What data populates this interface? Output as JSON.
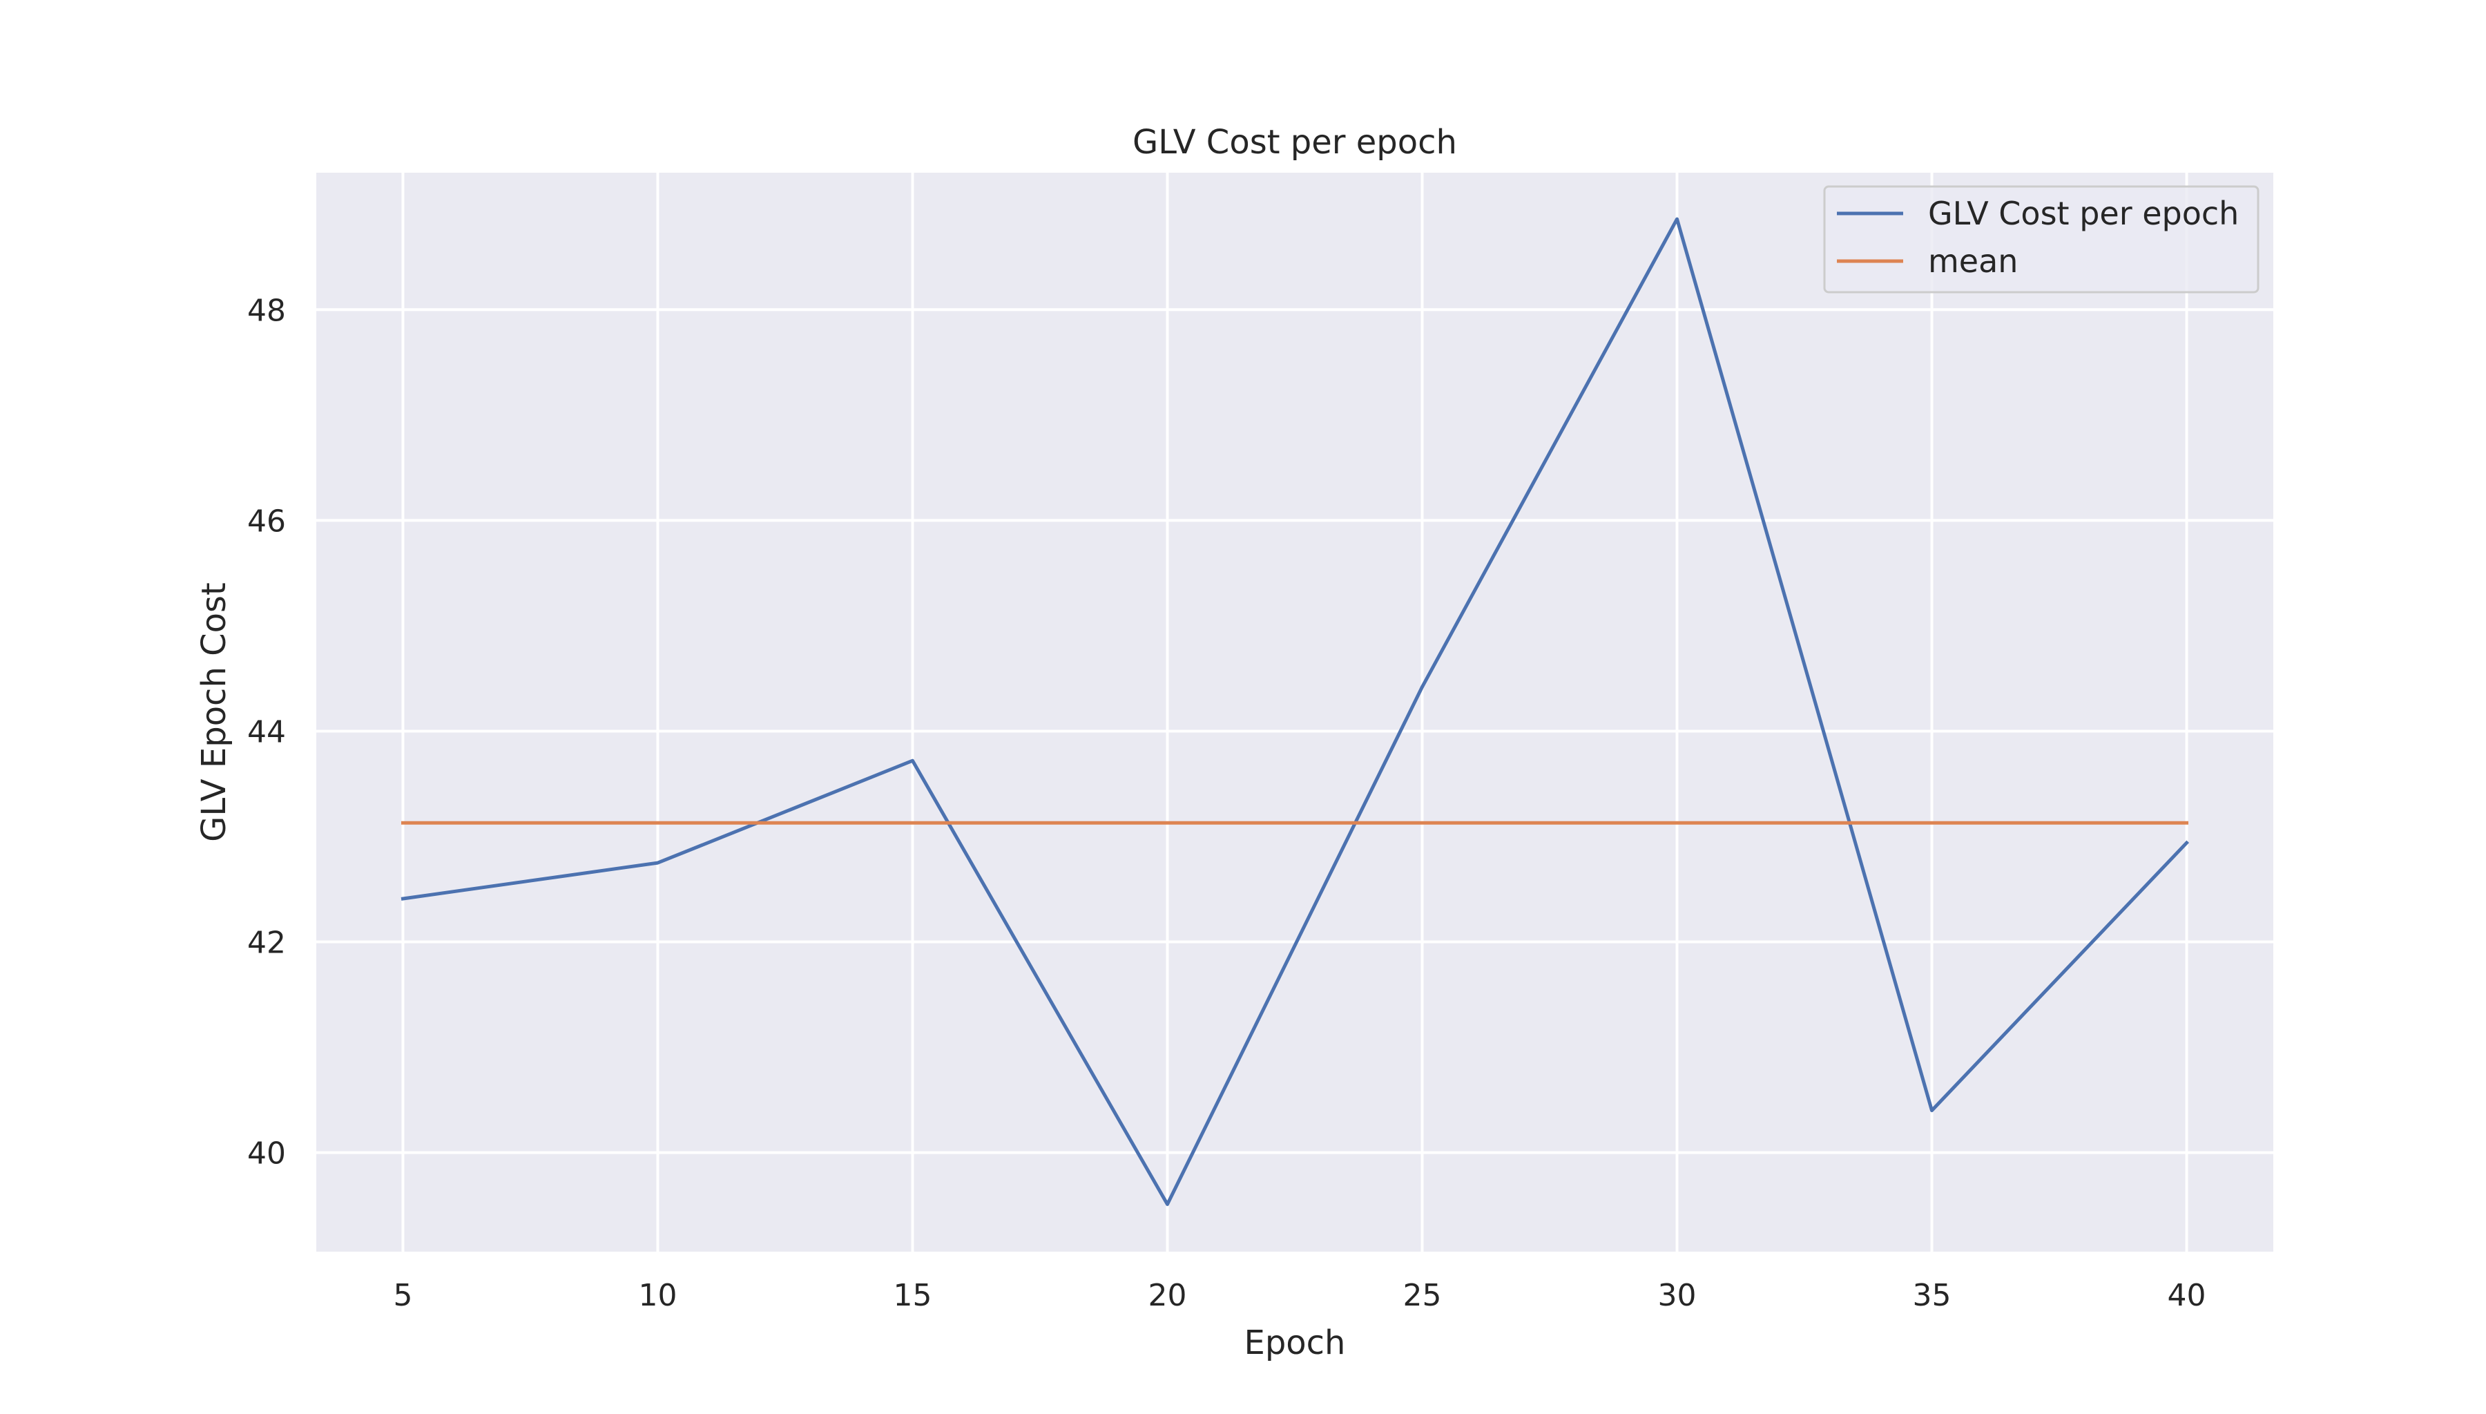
{
  "chart_data": {
    "type": "line",
    "title": "GLV Cost per epoch",
    "xlabel": "Epoch",
    "ylabel": "GLV Epoch Cost",
    "x": [
      5,
      10,
      15,
      20,
      25,
      30,
      35,
      40
    ],
    "xlim": [
      3.3,
      41.7
    ],
    "ylim": [
      39.06,
      49.3
    ],
    "xticks": [
      5,
      10,
      15,
      20,
      25,
      30,
      35,
      40
    ],
    "yticks": [
      40,
      42,
      44,
      46,
      48
    ],
    "grid": true,
    "legend_position": "top-right",
    "series": [
      {
        "name": "GLV Cost per epoch",
        "color": "#4c72b0",
        "values": [
          42.41,
          42.75,
          43.72,
          39.51,
          44.42,
          48.86,
          40.4,
          42.94
        ]
      },
      {
        "name": "mean",
        "color": "#dd8452",
        "values": [
          43.13,
          43.13,
          43.13,
          43.13,
          43.13,
          43.13,
          43.13,
          43.13
        ]
      }
    ]
  }
}
